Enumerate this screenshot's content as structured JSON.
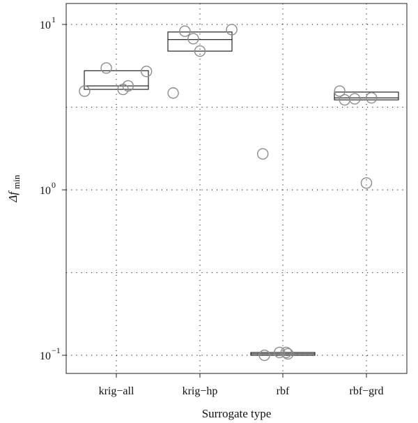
{
  "chart_data": {
    "type": "scatter",
    "subtype": "box-with-jittered-points",
    "title": "",
    "xlabel": "Surrogate type",
    "ylabel": "Δf",
    "ylabel_subscript": "min",
    "y_scale": "log10",
    "ylim": [
      0.085,
      14
    ],
    "y_ticks": [
      0.1,
      1,
      10
    ],
    "y_tick_labels": [
      {
        "base": "10",
        "exp": "−1"
      },
      {
        "base": "10",
        "exp": "0"
      },
      {
        "base": "10",
        "exp": "1"
      }
    ],
    "grid": {
      "style": "dotted",
      "y_lines": [
        0.1,
        0.316,
        1,
        3.16,
        10
      ]
    },
    "categories": [
      "krig−all",
      "krig−hp",
      "rbf",
      "rbf−grd"
    ],
    "boxes": [
      {
        "category": "krig−all",
        "q1": 4.05,
        "median": 4.25,
        "q3": 5.25
      },
      {
        "category": "krig−hp",
        "q1": 6.9,
        "median": 8.1,
        "q3": 9.0
      },
      {
        "category": "rbf",
        "q1": 0.1,
        "median": 0.102,
        "q3": 0.104
      },
      {
        "category": "rbf−grd",
        "q1": 3.5,
        "median": 3.6,
        "q3": 3.9
      }
    ],
    "points": [
      {
        "category": "krig−all",
        "jitter": -0.38,
        "value": 3.95
      },
      {
        "category": "krig−all",
        "jitter": -0.12,
        "value": 5.45
      },
      {
        "category": "krig−all",
        "jitter": 0.08,
        "value": 4.05
      },
      {
        "category": "krig−all",
        "jitter": 0.14,
        "value": 4.25
      },
      {
        "category": "krig−all",
        "jitter": 0.36,
        "value": 5.2
      },
      {
        "category": "krig−hp",
        "jitter": -0.32,
        "value": 3.85
      },
      {
        "category": "krig−hp",
        "jitter": -0.18,
        "value": 9.1
      },
      {
        "category": "krig−hp",
        "jitter": -0.08,
        "value": 8.2
      },
      {
        "category": "krig−hp",
        "jitter": 0.0,
        "value": 6.9
      },
      {
        "category": "krig−hp",
        "jitter": 0.38,
        "value": 9.3
      },
      {
        "category": "rbf",
        "jitter": -0.24,
        "value": 1.65
      },
      {
        "category": "rbf",
        "jitter": -0.22,
        "value": 0.1
      },
      {
        "category": "rbf",
        "jitter": -0.04,
        "value": 0.104
      },
      {
        "category": "rbf",
        "jitter": 0.04,
        "value": 0.104
      },
      {
        "category": "rbf",
        "jitter": 0.06,
        "value": 0.102
      },
      {
        "category": "rbf−grd",
        "jitter": -0.32,
        "value": 3.95
      },
      {
        "category": "rbf−grd",
        "jitter": -0.26,
        "value": 3.5
      },
      {
        "category": "rbf−grd",
        "jitter": -0.14,
        "value": 3.55
      },
      {
        "category": "rbf−grd",
        "jitter": 0.06,
        "value": 3.6
      },
      {
        "category": "rbf−grd",
        "jitter": 0.0,
        "value": 1.1
      }
    ],
    "colors": {
      "frame": "#222222",
      "grid": "#333333",
      "point": "#8c8c8c",
      "box": "#111111"
    }
  }
}
